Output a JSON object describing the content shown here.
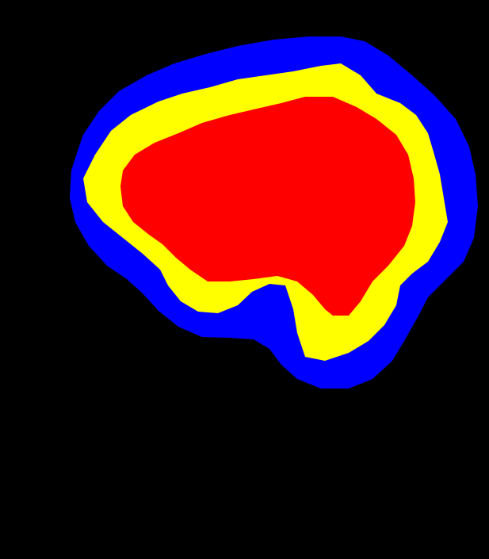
{
  "image": {
    "background_color": "#000000",
    "regions": [
      {
        "name": "outer-region",
        "color": "#0000ff"
      },
      {
        "name": "middle-region",
        "color": "#ffff00"
      },
      {
        "name": "inner-region",
        "color": "#ff0000"
      }
    ]
  }
}
